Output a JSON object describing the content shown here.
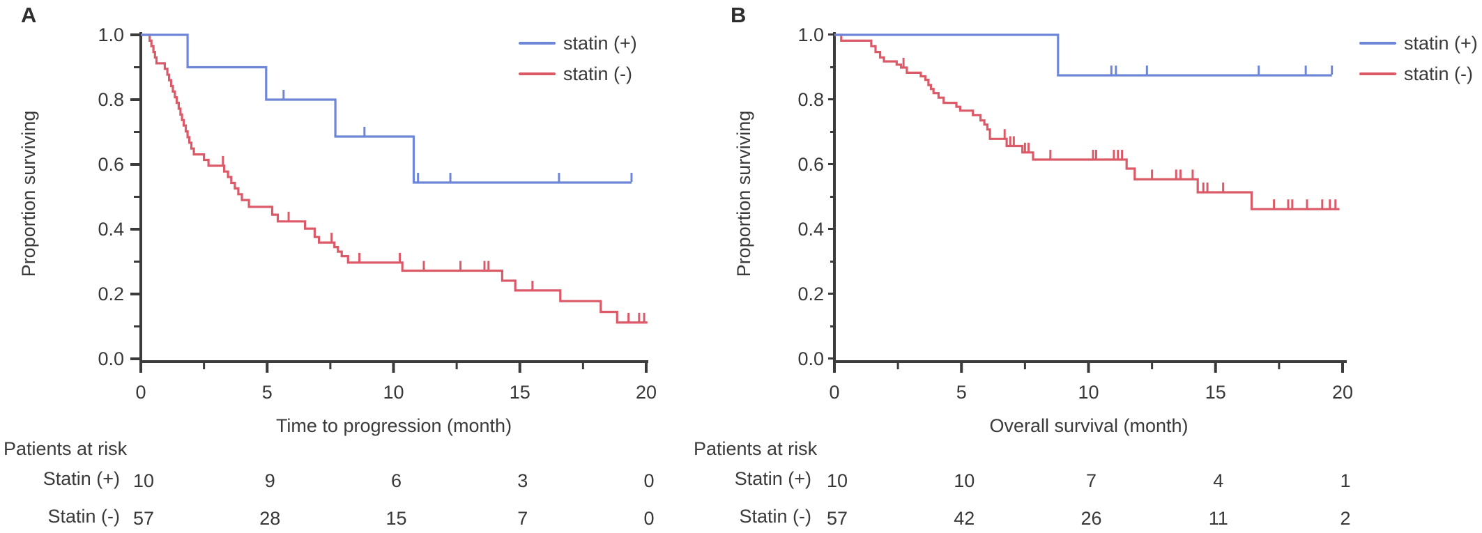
{
  "figure": {
    "background": "#ffffff",
    "text_color": "#383838",
    "axis_color": "#3b3b3b"
  },
  "chart_data": [
    {
      "type": "line",
      "km_style": "step",
      "panel_label": "A",
      "xlabel": "Time to progression (month)",
      "ylabel": "Proportion surviving",
      "xlim": [
        0,
        20
      ],
      "ylim": [
        0.0,
        1.0
      ],
      "x_ticks": [
        0,
        5,
        10,
        15,
        20
      ],
      "x_minor_ticks": [
        2.5,
        7.5,
        12.5,
        17.5
      ],
      "y_ticks": [
        "1.0",
        "0.8",
        "0.6",
        "0.4",
        "0.2",
        "0.0"
      ],
      "y_minor_ticks": [
        0.9,
        0.7,
        0.5,
        0.3,
        0.1
      ],
      "legend_position": "top-right",
      "grid": false,
      "series": [
        {
          "name": "statin (+)",
          "color": "#6e86d8",
          "start_survival": 1.0,
          "end_time": 19.42,
          "steps": [
            [
              1.85,
              0.9
            ],
            [
              4.96,
              0.8
            ],
            [
              7.7,
              0.686
            ],
            [
              10.8,
              0.544
            ]
          ],
          "censors": [
            [
              5.65,
              0.8
            ],
            [
              8.85,
              0.686
            ],
            [
              10.97,
              0.544
            ],
            [
              12.25,
              0.544
            ],
            [
              16.55,
              0.544
            ],
            [
              19.42,
              0.544
            ]
          ]
        },
        {
          "name": "statin (-)",
          "color": "#dc5a68",
          "start_survival": 1.0,
          "end_time": 20.05,
          "steps": [
            [
              0.35,
              0.982
            ],
            [
              0.42,
              0.965
            ],
            [
              0.5,
              0.947
            ],
            [
              0.56,
              0.93
            ],
            [
              0.62,
              0.912
            ],
            [
              0.95,
              0.895
            ],
            [
              1.05,
              0.877
            ],
            [
              1.12,
              0.86
            ],
            [
              1.2,
              0.842
            ],
            [
              1.27,
              0.825
            ],
            [
              1.35,
              0.807
            ],
            [
              1.42,
              0.79
            ],
            [
              1.5,
              0.772
            ],
            [
              1.57,
              0.754
            ],
            [
              1.63,
              0.737
            ],
            [
              1.7,
              0.72
            ],
            [
              1.78,
              0.702
            ],
            [
              1.85,
              0.684
            ],
            [
              1.92,
              0.667
            ],
            [
              2.0,
              0.649
            ],
            [
              2.1,
              0.631
            ],
            [
              2.5,
              0.614
            ],
            [
              2.68,
              0.596
            ],
            [
              3.3,
              0.578
            ],
            [
              3.45,
              0.561
            ],
            [
              3.58,
              0.543
            ],
            [
              3.72,
              0.526
            ],
            [
              3.86,
              0.508
            ],
            [
              4.0,
              0.49
            ],
            [
              4.28,
              0.469
            ],
            [
              5.2,
              0.445
            ],
            [
              5.42,
              0.424
            ],
            [
              6.5,
              0.402
            ],
            [
              6.88,
              0.376
            ],
            [
              7.05,
              0.359
            ],
            [
              7.66,
              0.345
            ],
            [
              7.8,
              0.331
            ],
            [
              7.95,
              0.317
            ],
            [
              8.2,
              0.297
            ],
            [
              10.35,
              0.272
            ],
            [
              14.3,
              0.241
            ],
            [
              14.82,
              0.211
            ],
            [
              16.6,
              0.178
            ],
            [
              18.2,
              0.145
            ],
            [
              18.85,
              0.112
            ]
          ],
          "censors": [
            [
              3.25,
              0.596
            ],
            [
              5.85,
              0.424
            ],
            [
              7.55,
              0.359
            ],
            [
              8.65,
              0.297
            ],
            [
              10.25,
              0.297
            ],
            [
              11.2,
              0.272
            ],
            [
              12.65,
              0.272
            ],
            [
              13.6,
              0.272
            ],
            [
              13.76,
              0.272
            ],
            [
              15.5,
              0.211
            ],
            [
              19.3,
              0.112
            ],
            [
              19.72,
              0.112
            ],
            [
              19.92,
              0.112
            ]
          ]
        }
      ],
      "risk_table": {
        "header": "Patients at risk",
        "time_points": [
          0,
          5,
          10,
          15,
          20
        ],
        "rows": [
          {
            "label": "Statin (+)",
            "counts": [
              "10",
              "9",
              "6",
              "3",
              "0"
            ]
          },
          {
            "label": "Statin (-)",
            "counts": [
              "57",
              "28",
              "15",
              "7",
              "0"
            ]
          }
        ]
      }
    },
    {
      "type": "line",
      "km_style": "step",
      "panel_label": "B",
      "xlabel": "Overall survival (month)",
      "ylabel": "Proportion surviving",
      "xlim": [
        0,
        20
      ],
      "ylim": [
        0.0,
        1.0
      ],
      "x_ticks": [
        0,
        5,
        10,
        15,
        20
      ],
      "x_minor_ticks": [
        2.5,
        7.5,
        12.5,
        17.5
      ],
      "y_ticks": [
        "1.0",
        "0.8",
        "0.6",
        "0.4",
        "0.2",
        "0.0"
      ],
      "y_minor_ticks": [
        0.9,
        0.7,
        0.5,
        0.3,
        0.1
      ],
      "legend_position": "top-right",
      "grid": false,
      "series": [
        {
          "name": "statin (+)",
          "color": "#6e86d8",
          "start_survival": 1.0,
          "end_time": 19.58,
          "steps": [
            [
              8.8,
              0.875
            ]
          ],
          "censors": [
            [
              10.9,
              0.875
            ],
            [
              11.08,
              0.875
            ],
            [
              12.3,
              0.875
            ],
            [
              16.7,
              0.875
            ],
            [
              18.55,
              0.875
            ],
            [
              19.58,
              0.875
            ]
          ]
        },
        {
          "name": "statin (-)",
          "color": "#dc5a68",
          "start_survival": 1.0,
          "end_time": 19.88,
          "steps": [
            [
              0.27,
              0.982
            ],
            [
              1.45,
              0.965
            ],
            [
              1.62,
              0.947
            ],
            [
              1.8,
              0.93
            ],
            [
              1.95,
              0.918
            ],
            [
              2.45,
              0.908
            ],
            [
              2.62,
              0.899
            ],
            [
              2.85,
              0.883
            ],
            [
              3.4,
              0.872
            ],
            [
              3.58,
              0.861
            ],
            [
              3.7,
              0.845
            ],
            [
              3.8,
              0.833
            ],
            [
              3.9,
              0.82
            ],
            [
              4.1,
              0.806
            ],
            [
              4.3,
              0.79
            ],
            [
              4.8,
              0.778
            ],
            [
              4.95,
              0.766
            ],
            [
              5.45,
              0.752
            ],
            [
              5.75,
              0.736
            ],
            [
              5.9,
              0.723
            ],
            [
              6.02,
              0.708
            ],
            [
              6.12,
              0.679
            ],
            [
              6.78,
              0.657
            ],
            [
              7.4,
              0.637
            ],
            [
              7.82,
              0.615
            ],
            [
              11.5,
              0.587
            ],
            [
              11.82,
              0.554
            ],
            [
              14.3,
              0.514
            ],
            [
              16.42,
              0.462
            ]
          ],
          "censors": [
            [
              2.72,
              0.899
            ],
            [
              6.7,
              0.679
            ],
            [
              6.92,
              0.657
            ],
            [
              7.06,
              0.657
            ],
            [
              7.5,
              0.637
            ],
            [
              7.64,
              0.637
            ],
            [
              8.5,
              0.615
            ],
            [
              10.18,
              0.615
            ],
            [
              10.3,
              0.615
            ],
            [
              11.0,
              0.615
            ],
            [
              11.16,
              0.615
            ],
            [
              11.32,
              0.615
            ],
            [
              12.5,
              0.554
            ],
            [
              13.45,
              0.554
            ],
            [
              13.62,
              0.554
            ],
            [
              14.1,
              0.554
            ],
            [
              14.52,
              0.514
            ],
            [
              14.68,
              0.514
            ],
            [
              15.3,
              0.514
            ],
            [
              17.3,
              0.462
            ],
            [
              17.86,
              0.462
            ],
            [
              18.02,
              0.462
            ],
            [
              18.6,
              0.462
            ],
            [
              19.2,
              0.462
            ],
            [
              19.5,
              0.462
            ],
            [
              19.72,
              0.462
            ]
          ]
        }
      ],
      "risk_table": {
        "header": "Patients at risk",
        "time_points": [
          0,
          5,
          10,
          15,
          20
        ],
        "rows": [
          {
            "label": "Statin (+)",
            "counts": [
              "10",
              "10",
              "7",
              "4",
              "1"
            ]
          },
          {
            "label": "Statin (-)",
            "counts": [
              "57",
              "42",
              "26",
              "11",
              "2"
            ]
          }
        ]
      }
    }
  ]
}
